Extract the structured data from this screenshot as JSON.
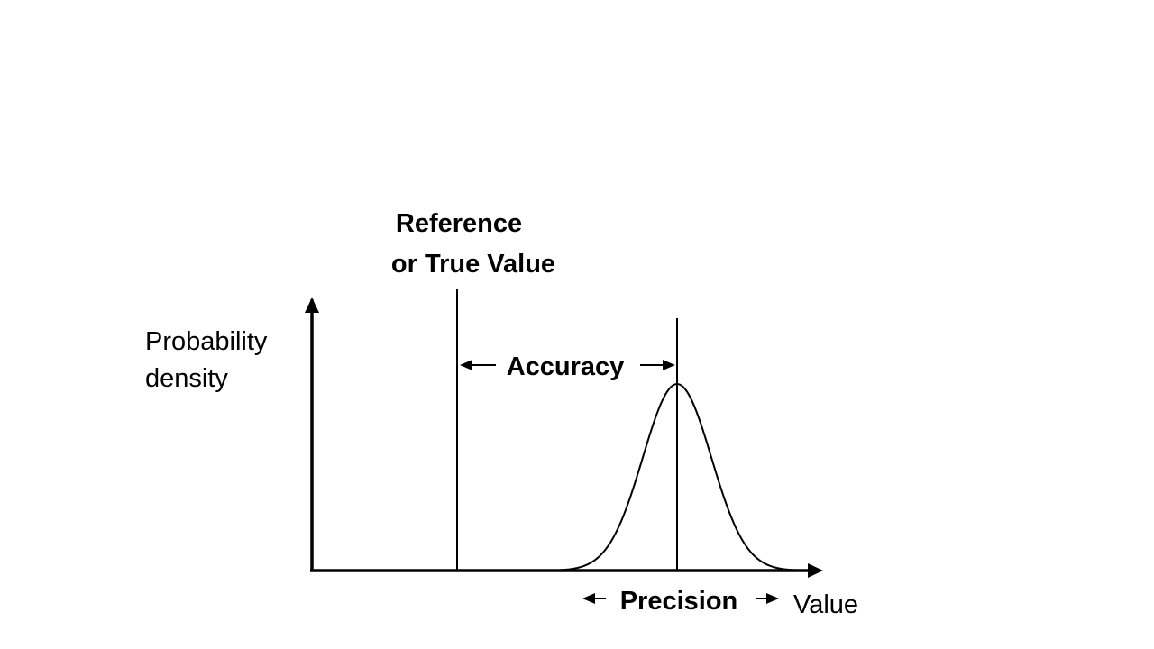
{
  "diagram": {
    "reference_label": [
      "Reference",
      "or True Value"
    ],
    "y_axis_label": [
      "Probability",
      "density"
    ],
    "x_axis_label": "Value",
    "accuracy_label": "Accuracy",
    "precision_label": "Precision"
  },
  "colors": {
    "ink": "#000000",
    "background": "#ffffff"
  }
}
